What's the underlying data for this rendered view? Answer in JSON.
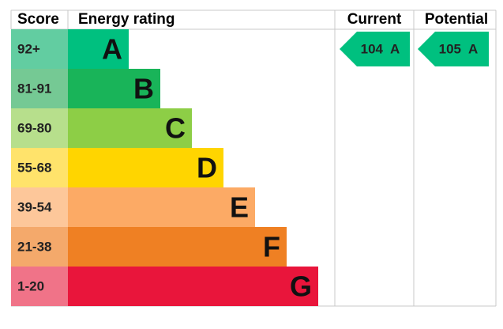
{
  "header": {
    "score": "Score",
    "energy_rating": "Energy rating",
    "current": "Current",
    "potential": "Potential"
  },
  "bands": [
    {
      "range": "92+",
      "letter": "A",
      "color": "#00c07f",
      "score_color": "#62cda1"
    },
    {
      "range": "81-91",
      "letter": "B",
      "color": "#19b459",
      "score_color": "#75c994"
    },
    {
      "range": "69-80",
      "letter": "C",
      "color": "#8dce46",
      "score_color": "#b7df8c"
    },
    {
      "range": "55-68",
      "letter": "D",
      "color": "#ffd500",
      "score_color": "#ffe36b"
    },
    {
      "range": "39-54",
      "letter": "E",
      "color": "#fcaa65",
      "score_color": "#fdc79a"
    },
    {
      "range": "21-38",
      "letter": "F",
      "color": "#ef8023",
      "score_color": "#f4a96b"
    },
    {
      "range": "1-20",
      "letter": "G",
      "color": "#e9153b",
      "score_color": "#f07388"
    }
  ],
  "current": {
    "score": 104,
    "rating": "A"
  },
  "potential": {
    "score": 105,
    "rating": "A"
  }
}
